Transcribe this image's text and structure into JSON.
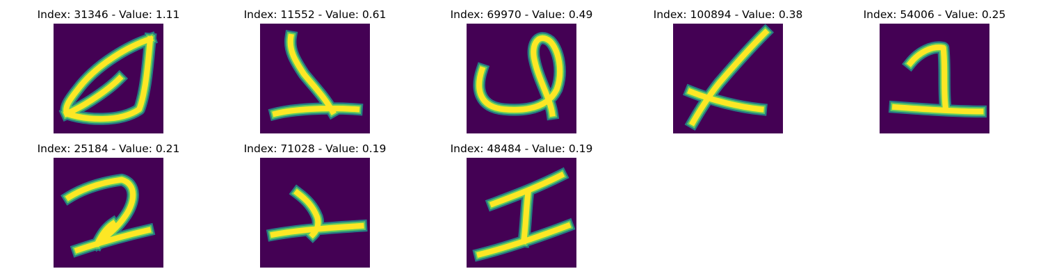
{
  "figure": {
    "colormap": {
      "background": "#440154",
      "edge_dark": "#21918c",
      "edge_mid": "#5ec962",
      "stroke_core": "#fde725"
    },
    "panels": [
      {
        "title": "Index: 31346 - Value: 1.11",
        "index": 31346,
        "value": 1.11,
        "glyph": "loop-zero"
      },
      {
        "title": "Index: 11552 - Value: 0.61",
        "index": 11552,
        "value": 0.61,
        "glyph": "curvy-two"
      },
      {
        "title": "Index: 69970 - Value: 0.49",
        "index": 69970,
        "value": 0.49,
        "glyph": "looped-stroke"
      },
      {
        "title": "Index: 100894 - Value: 0.38",
        "index": 100894,
        "value": 0.38,
        "glyph": "diagonal-cross"
      },
      {
        "title": "Index: 54006 - Value: 0.25",
        "index": 54006,
        "value": 0.25,
        "glyph": "one-with-base"
      },
      {
        "title": "Index: 25184 - Value: 0.21",
        "index": 25184,
        "value": 0.21,
        "glyph": "two"
      },
      {
        "title": "Index: 71028 - Value: 0.19",
        "index": 71028,
        "value": 0.19,
        "glyph": "small-two"
      },
      {
        "title": "Index: 48484 - Value: 0.19",
        "index": 48484,
        "value": 0.19,
        "glyph": "serif-one"
      }
    ]
  }
}
